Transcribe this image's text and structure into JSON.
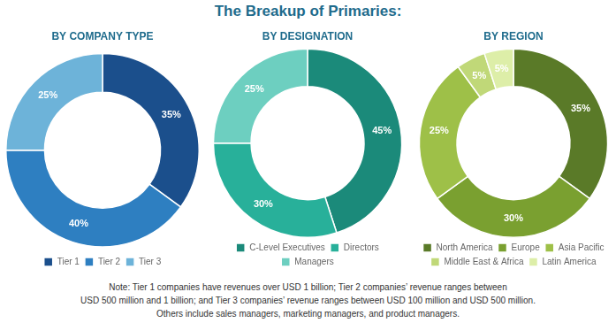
{
  "title": "The Breakup of Primaries:",
  "annotations": [
    "Note: Tier 1 companies have revenues over USD 1 billion; Tier 2 companies’ revenue ranges between\nUSD 500 million and 1 billion; and Tier 3 companies’ revenue ranges between USD 100 million and USD 500 million.\nOthers include sales managers, marketing managers, and product managers."
  ],
  "chart_data": [
    {
      "type": "doughnut",
      "subtitle": "BY COMPANY TYPE",
      "categories": [
        "Tier 1",
        "Tier 2",
        "Tier 3"
      ],
      "values": [
        35,
        40,
        25
      ],
      "value_labels": [
        "35%",
        "40%",
        "25%"
      ],
      "colors": [
        "#1b4f8c",
        "#2e7fc1",
        "#6db3d9"
      ],
      "data_labels": true,
      "legend": "bottom"
    },
    {
      "type": "doughnut",
      "subtitle": "BY DESIGNATION",
      "categories": [
        "C-Level Executives",
        "Directors",
        "Managers"
      ],
      "values": [
        45,
        30,
        25
      ],
      "value_labels": [
        "45%",
        "30%",
        "25%"
      ],
      "colors": [
        "#1b8a7a",
        "#28b09a",
        "#6dcfc0"
      ],
      "data_labels": true,
      "legend": "bottom"
    },
    {
      "type": "doughnut",
      "subtitle": "BY REGION",
      "categories": [
        "North America",
        "Europe",
        "Asia Pacific",
        "Middle East & Africa",
        "Latin America"
      ],
      "values": [
        35,
        30,
        25,
        5,
        5
      ],
      "value_labels": [
        "35%",
        "30%",
        "25%",
        "5%",
        "5%"
      ],
      "colors": [
        "#5a7a28",
        "#7aa030",
        "#9ec048",
        "#c0d878",
        "#ddeea8"
      ],
      "data_labels": true,
      "legend": "bottom"
    }
  ]
}
